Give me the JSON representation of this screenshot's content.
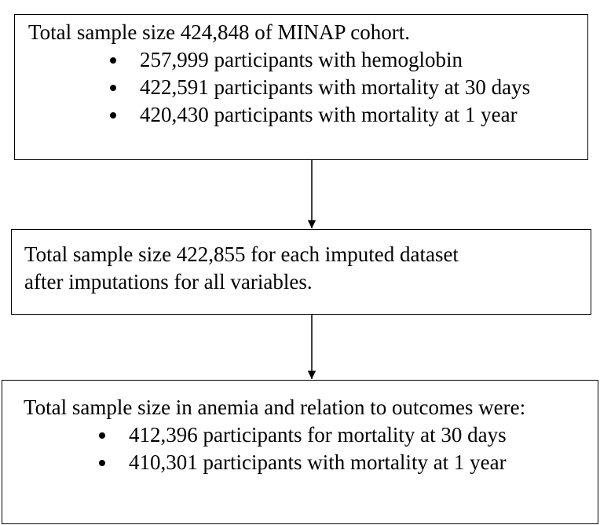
{
  "nodes": [
    {
      "text": "Total sample size 424,848 of MINAP cohort.",
      "bullets": [
        "257,999 participants with hemoglobin",
        "422,591 participants with mortality at 30 days",
        "420,430 participants with mortality at 1 year"
      ]
    },
    {
      "text": "Total sample size 422,855 for each imputed dataset after imputations for all variables.",
      "bullets": []
    },
    {
      "text": "Total sample size in anemia and relation to outcomes were:",
      "bullets": [
        "412,396 participants for mortality at 30 days",
        "410,301 participants with mortality at 1 year"
      ]
    }
  ]
}
